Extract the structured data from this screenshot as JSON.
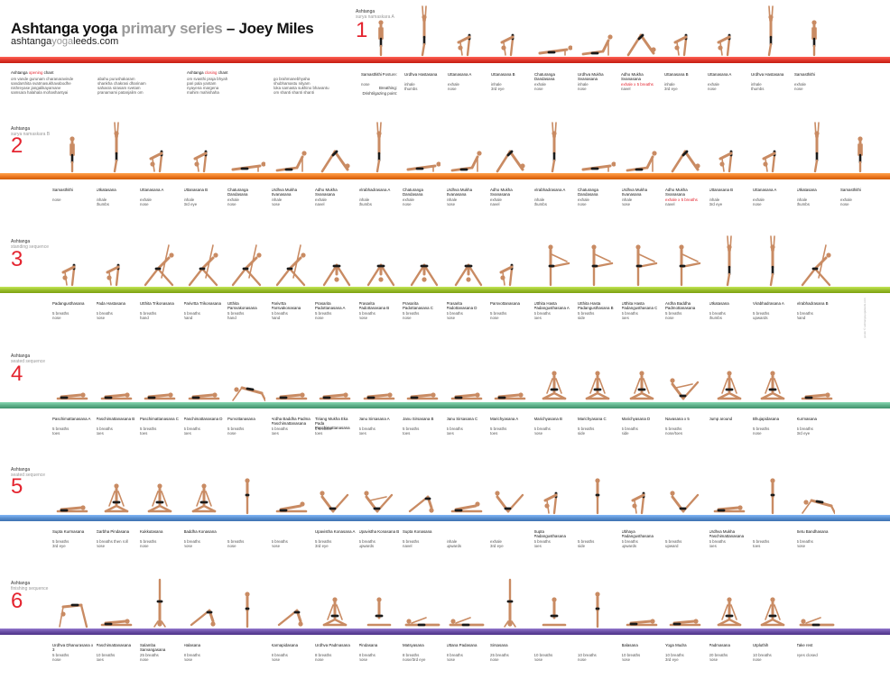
{
  "header": {
    "title_main": "Ashtanga yoga",
    "title_grey": "primary series",
    "title_dash": " – ",
    "title_author": "Joey Miles",
    "url_a": "ashtanga",
    "url_b": "yoga",
    "url_c": "leeds.com"
  },
  "chants": {
    "opening_pre": "Ashtanga",
    "opening_red": "opening",
    "opening_post": "chant",
    "opening_col1": [
      "om    vande gurunam charanaravinde",
      "sandarshita svatmasukhavabodhe",
      "nishreyase jangalikayamane",
      "samsara halahala mohashantyai"
    ],
    "opening_col2": [
      "abahu purushakaram",
      "shankha chakrasi dharinam",
      "sahasra sirasam svetam",
      "pranamami patanjalim    om"
    ],
    "closing_pre": "Ashtanga",
    "closing_red": "closing",
    "closing_post": "chant",
    "closing_col1": [
      "om    svasthi praja bhyah",
      "pari pala yantam",
      "nyayena margena",
      "mahim mahishaha"
    ],
    "closing_col2": [
      "go brahmanebhyaha",
      "shubhamastu nityam",
      "loka samasta sukhino bhavantu",
      "om    shanti shanti shanti"
    ]
  },
  "side_labels": {
    "posture": "Posture:",
    "breathing": "Breathing:",
    "drishti": "Drishti/gazing point:"
  },
  "credit": "poster © ashtangayogaleeds.com",
  "sections": [
    {
      "num": "1",
      "label_a": "Ashtanga",
      "label_b": "surya namaskara A",
      "color": "#e23a2e",
      "poses": [
        {
          "n": "Samasthithi",
          "b": "",
          "g": "nose"
        },
        {
          "n": "Urdhva Hastasana",
          "b": "inhale",
          "g": "thumbs"
        },
        {
          "n": "Uttanasana A",
          "b": "exhale",
          "g": "nose"
        },
        {
          "n": "Uttanasana B",
          "b": "inhale",
          "g": "3rd eye"
        },
        {
          "n": "Chaturanga Dandasana",
          "b": "exhale",
          "g": "nose"
        },
        {
          "n": "Urdhva Mukha Svanasana",
          "b": "inhale",
          "g": "nose"
        },
        {
          "n": "Adho Mukha Svanasana",
          "b": "exhale x 5 breaths",
          "g": "navel",
          "red": true
        },
        {
          "n": "Uttanasana B",
          "b": "inhale",
          "g": "3rd eye"
        },
        {
          "n": "Uttanasana A",
          "b": "exhale",
          "g": "nose"
        },
        {
          "n": "Urdhva Hastasana",
          "b": "inhale",
          "g": "thumbs"
        },
        {
          "n": "Samasthithi",
          "b": "exhale",
          "g": "nose"
        }
      ]
    },
    {
      "num": "2",
      "label_a": "Ashtanga",
      "label_b": "surya namaskara B",
      "color": "#ee7a23",
      "poses": [
        {
          "n": "Samasthithi",
          "b": "",
          "g": "nose"
        },
        {
          "n": "Utkatasana",
          "b": "inhale",
          "g": "thumbs"
        },
        {
          "n": "Uttanasana A",
          "b": "exhale",
          "g": "nose"
        },
        {
          "n": "Uttanasana B",
          "b": "inhale",
          "g": "3rd eye"
        },
        {
          "n": "Chaturanga Dandasana",
          "b": "exhale",
          "g": "nose"
        },
        {
          "n": "Urdhva Mukha Svanasana",
          "b": "inhale",
          "g": "nose"
        },
        {
          "n": "Adho Mukha Svanasana",
          "b": "exhale",
          "g": "navel"
        },
        {
          "n": "Virabhadrasana A",
          "b": "inhale",
          "g": "thumbs"
        },
        {
          "n": "Chaturanga Dandasana",
          "b": "exhale",
          "g": "nose"
        },
        {
          "n": "Urdhva Mukha Svanasana",
          "b": "inhale",
          "g": "nose"
        },
        {
          "n": "Adho Mukha Svanasana",
          "b": "exhale",
          "g": "navel"
        },
        {
          "n": "Virabhadrasana A",
          "b": "inhale",
          "g": "thumbs"
        },
        {
          "n": "Chaturanga Dandasana",
          "b": "exhale",
          "g": "nose"
        },
        {
          "n": "Urdhva Mukha Svanasana",
          "b": "inhale",
          "g": "nose"
        },
        {
          "n": "Adho Mukha Svanasana",
          "b": "exhale x 5 breaths",
          "g": "navel",
          "red": true
        },
        {
          "n": "Uttanasana B",
          "b": "inhale",
          "g": "3rd eye"
        },
        {
          "n": "Uttanasana A",
          "b": "exhale",
          "g": "nose"
        },
        {
          "n": "Utkatasana",
          "b": "inhale",
          "g": "thumbs"
        },
        {
          "n": "Samasthithi",
          "b": "exhale",
          "g": "nose"
        }
      ]
    },
    {
      "num": "3",
      "label_a": "Ashtanga",
      "label_b": "standing sequence",
      "color": "#9bbf2e",
      "poses": [
        {
          "n": "Padangusthasana",
          "b": "5 breaths",
          "g": "nose"
        },
        {
          "n": "Pada Hastasana",
          "b": "5 breaths",
          "g": "nose"
        },
        {
          "n": "Utthita Trikonasana",
          "b": "5 breaths",
          "g": "hand"
        },
        {
          "n": "Parivrtta Trikonasana",
          "b": "5 breaths",
          "g": "hand"
        },
        {
          "n": "Utthita Parsvakonasana",
          "b": "5 breaths",
          "g": "hand"
        },
        {
          "n": "Parivrtta Parsvakonasana",
          "b": "5 breaths",
          "g": "hand"
        },
        {
          "n": "Prasarita Padottanasana A",
          "b": "5 breaths",
          "g": "nose"
        },
        {
          "n": "Prasarita Padottanasana B",
          "b": "5 breaths",
          "g": "nose"
        },
        {
          "n": "Prasarita Padottanasana C",
          "b": "5 breaths",
          "g": "nose"
        },
        {
          "n": "Prasarita Padottanasana D",
          "b": "5 breaths",
          "g": "nose"
        },
        {
          "n": "Parsvottanasana",
          "b": "5 breaths",
          "g": "nose"
        },
        {
          "n": "Utthita Hasta Padangusthasana A",
          "b": "5 breaths",
          "g": "toes"
        },
        {
          "n": "Utthita Hasta Padangusthasana B",
          "b": "5 breaths",
          "g": "side"
        },
        {
          "n": "Utthita Hasta Padangusthasana C",
          "b": "5 breaths",
          "g": "toes"
        },
        {
          "n": "Ardha Baddha Padmottanasana",
          "b": "5 breaths",
          "g": "nose"
        },
        {
          "n": "Utkatasana",
          "b": "5 breaths",
          "g": "thumbs"
        },
        {
          "n": "Virabhadrasana A",
          "b": "5 breaths",
          "g": "upwards"
        },
        {
          "n": "Virabhadrasana B",
          "b": "5 breaths",
          "g": "hand"
        }
      ]
    },
    {
      "num": "4",
      "label_a": "Ashtanga",
      "label_b": "seated sequence",
      "color": "#5fb08a",
      "poses": [
        {
          "n": "Paschimattanasana A",
          "b": "5 breaths",
          "g": "toes"
        },
        {
          "n": "Paschimattanasana B",
          "b": "5 breaths",
          "g": "toes"
        },
        {
          "n": "Paschimattanasana C",
          "b": "5 breaths",
          "g": "toes"
        },
        {
          "n": "Paschimattanasana D",
          "b": "5 breaths",
          "g": "toes"
        },
        {
          "n": "Purvottanasana",
          "b": "5 breaths",
          "g": "nose"
        },
        {
          "n": "Ardha Baddha Padma Paschimattanasana",
          "b": "5 breaths",
          "g": "toes"
        },
        {
          "n": "Tiriang Mukha Eka Pada Paschimattanasana",
          "b": "5 breaths",
          "g": "toes"
        },
        {
          "n": "Janu Sirsasana A",
          "b": "5 breaths",
          "g": "toes"
        },
        {
          "n": "Janu Sirsasana B",
          "b": "5 breaths",
          "g": "toes"
        },
        {
          "n": "Janu Sirsasana C",
          "b": "5 breaths",
          "g": "toes"
        },
        {
          "n": "Marichyasana A",
          "b": "5 breaths",
          "g": "toes"
        },
        {
          "n": "Marichyasana B",
          "b": "5 breaths",
          "g": "nose"
        },
        {
          "n": "Marichyasana C",
          "b": "5 breaths",
          "g": "side"
        },
        {
          "n": "Marichyasana D",
          "b": "5 breaths",
          "g": "side"
        },
        {
          "n": "Navasana x 5",
          "b": "5 breaths",
          "g": "nose/toes"
        },
        {
          "n": "Jump around",
          "b": "",
          "g": ""
        },
        {
          "n": "Bhujapidasana",
          "b": "5 breaths",
          "g": "nose"
        },
        {
          "n": "Kurmasana",
          "b": "5 breaths",
          "g": "3rd eye"
        }
      ]
    },
    {
      "num": "5",
      "label_a": "Ashtanga",
      "label_b": "seated sequence",
      "color": "#5a8fcf",
      "poses": [
        {
          "n": "Supta Kurmasana",
          "b": "5 breaths",
          "g": "3rd eye"
        },
        {
          "n": "Garbha Pindasana",
          "b": "5 breaths then roll",
          "g": "nose"
        },
        {
          "n": "Kukkutasana",
          "b": "5 breaths",
          "g": "nose"
        },
        {
          "n": "Baddha Konasana",
          "b": "5 breaths",
          "g": "nose"
        },
        {
          "n": "",
          "b": "5 breaths",
          "g": "nose"
        },
        {
          "n": "",
          "b": "5 breaths",
          "g": "nose"
        },
        {
          "n": "Upavistha Konasana A",
          "b": "5 breaths",
          "g": "3rd eye"
        },
        {
          "n": "Upavistha Konasana B",
          "b": "5 breaths",
          "g": "upwards"
        },
        {
          "n": "Supta Konasana",
          "b": "5 breaths",
          "g": "navel"
        },
        {
          "n": "",
          "b": "inhale",
          "g": "upwards"
        },
        {
          "n": "",
          "b": "exhale",
          "g": "3rd eye"
        },
        {
          "n": "Supta Padangusthasana",
          "b": "5 breaths",
          "g": "toes"
        },
        {
          "n": "",
          "b": "5 breaths",
          "g": "side"
        },
        {
          "n": "Ubhaya Padangusthasana",
          "b": "5 breaths",
          "g": "upwards"
        },
        {
          "n": "",
          "b": "5 breaths",
          "g": "upward"
        },
        {
          "n": "Urdhva Mukha Paschimattanasana",
          "b": "5 breaths",
          "g": "toes"
        },
        {
          "n": "",
          "b": "5 breaths",
          "g": "toes"
        },
        {
          "n": "Setu Bandhasana",
          "b": "5 breaths",
          "g": "nose"
        }
      ]
    },
    {
      "num": "6",
      "label_a": "Ashtanga",
      "label_b": "finishing sequence",
      "color": "#6a4fa5",
      "poses": [
        {
          "n": "Urdhva Dhanurasana x 3",
          "b": "5 breaths",
          "g": "nose"
        },
        {
          "n": "Paschimattanasana",
          "b": "10 breaths",
          "g": "toes"
        },
        {
          "n": "Salamba Sarvangasana",
          "b": "25 breaths",
          "g": "nose"
        },
        {
          "n": "Halasana",
          "b": "8 breaths",
          "g": "nose"
        },
        {
          "n": "",
          "b": "",
          "g": ""
        },
        {
          "n": "Karnapidasana",
          "b": "8 breaths",
          "g": "nose"
        },
        {
          "n": "Urdhva Padmasana",
          "b": "8 breaths",
          "g": "nose"
        },
        {
          "n": "Pindasana",
          "b": "8 breaths",
          "g": "nose"
        },
        {
          "n": "Matsyasana",
          "b": "8 breaths",
          "g": "nose/3rd eye"
        },
        {
          "n": "Uttana Padasana",
          "b": "8 breaths",
          "g": "nose"
        },
        {
          "n": "Sirsasana",
          "b": "25 breaths",
          "g": "nose"
        },
        {
          "n": "",
          "b": "10 breaths",
          "g": "nose"
        },
        {
          "n": "",
          "b": "10 breaths",
          "g": "nose"
        },
        {
          "n": "Balasana",
          "b": "10 breaths",
          "g": "nose"
        },
        {
          "n": "Yoga Mudra",
          "b": "10 breaths",
          "g": "3rd eye"
        },
        {
          "n": "Padmasana",
          "b": "20 breaths",
          "g": "nose"
        },
        {
          "n": "Utpluthih",
          "b": "10 breaths",
          "g": "nose"
        },
        {
          "n": "Take rest",
          "b": "",
          "g": "eyes closed"
        }
      ]
    }
  ]
}
